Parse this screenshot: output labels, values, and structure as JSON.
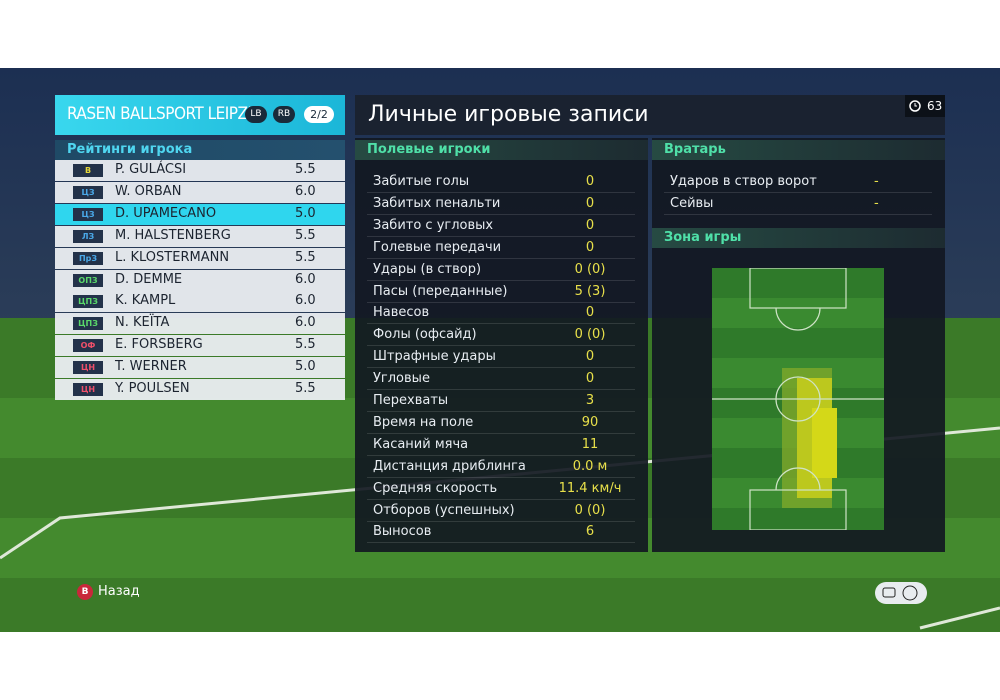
{
  "team": {
    "name": "RASEN BALLSPORT LEIPZIG",
    "buttons": [
      "LB",
      "RB"
    ],
    "page": "2/2"
  },
  "ratings": {
    "title": "Рейтинги игрока",
    "players": [
      {
        "pos": "В",
        "name": "P. GULÁCSI",
        "rating": "5.5",
        "badge": "#e6d83a"
      },
      {
        "pos": "ЦЗ",
        "name": "W. ORBAN",
        "rating": "6.0",
        "badge": "#4aa8e8"
      },
      {
        "pos": "ЦЗ",
        "name": "D. UPAMECANO",
        "rating": "5.0",
        "badge": "#4aa8e8"
      },
      {
        "pos": "ЛЗ",
        "name": "M. HALSTENBERG",
        "rating": "5.5",
        "badge": "#4aa8e8"
      },
      {
        "pos": "ПрЗ",
        "name": "L. KLOSTERMANN",
        "rating": "5.5",
        "badge": "#4aa8e8"
      },
      {
        "pos": "ОПЗ",
        "name": "D. DEMME",
        "rating": "6.0",
        "badge": "#5ad86a"
      },
      {
        "pos": "ЦПЗ",
        "name": "K. KAMPL",
        "rating": "6.0",
        "badge": "#5ad86a"
      },
      {
        "pos": "ЦПЗ",
        "name": "N. KEÏTA",
        "rating": "6.0",
        "badge": "#5ad86a"
      },
      {
        "pos": "ОФ",
        "name": "E. FORSBERG",
        "rating": "5.5",
        "badge": "#f0506a"
      },
      {
        "pos": "ЦН",
        "name": "T. WERNER",
        "rating": "5.0",
        "badge": "#f0506a"
      },
      {
        "pos": "ЦН",
        "name": "Y. POULSEN",
        "rating": "5.5",
        "badge": "#f0506a"
      }
    ]
  },
  "records": {
    "title": "Личные игровые записи",
    "time": "63",
    "field": {
      "title": "Полевые игроки",
      "rows": [
        [
          "Забитые голы",
          "0"
        ],
        [
          "Забитых пенальти",
          "0"
        ],
        [
          "Забито с угловых",
          "0"
        ],
        [
          "Голевые передачи",
          "0"
        ],
        [
          "Удары (в створ)",
          "0 (0)"
        ],
        [
          "Пасы (переданные)",
          "5 (3)"
        ],
        [
          "Навесов",
          "0"
        ],
        [
          "Фолы (офсайд)",
          "0 (0)"
        ],
        [
          "Штрафные удары",
          "0"
        ],
        [
          "Угловые",
          "0"
        ],
        [
          "Перехваты",
          "3"
        ],
        [
          "Время на поле",
          "90"
        ],
        [
          "Касаний мяча",
          "11"
        ],
        [
          "Дистанция дриблинга",
          "0.0 м"
        ],
        [
          "Средняя скорость",
          "11.4 км/ч"
        ],
        [
          "Отборов (успешных)",
          "0 (0)"
        ],
        [
          "Выносов",
          "6"
        ]
      ]
    },
    "goalkeeper": {
      "title": "Вратарь",
      "rows": [
        [
          "Ударов в створ ворот",
          "-"
        ],
        [
          "Сейвы",
          "-"
        ]
      ]
    },
    "zone": {
      "title": "Зона игры"
    }
  },
  "footer": {
    "button": "B",
    "back": "Назад"
  }
}
